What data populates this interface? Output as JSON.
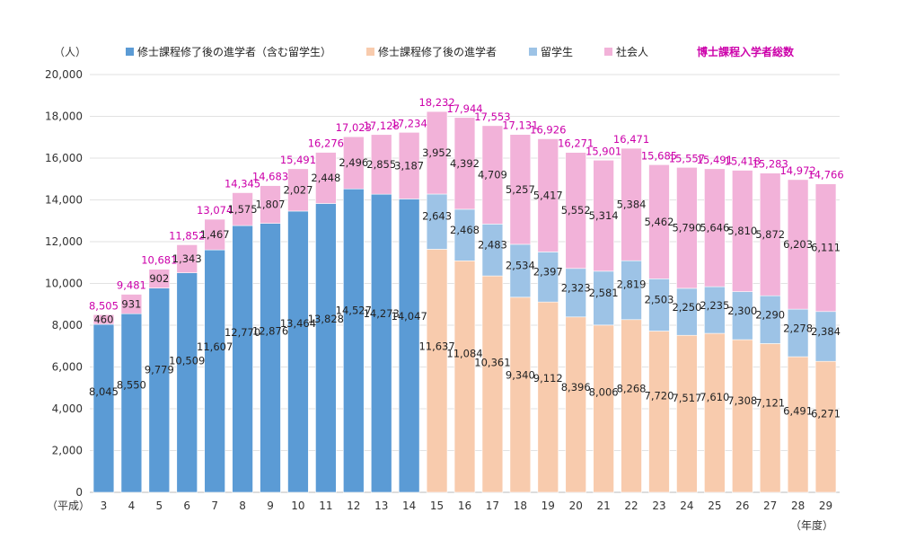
{
  "chart_data": {
    "type": "bar",
    "stacked": true,
    "unit_label": "（人）",
    "x_prefix": "（平成）",
    "x_suffix": "（年度）",
    "categories": [
      "3",
      "4",
      "5",
      "6",
      "7",
      "8",
      "9",
      "10",
      "11",
      "12",
      "13",
      "14",
      "15",
      "16",
      "17",
      "18",
      "19",
      "20",
      "21",
      "22",
      "23",
      "24",
      "25",
      "26",
      "27",
      "28",
      "29"
    ],
    "ylim": [
      0,
      20000
    ],
    "yticks": [
      0,
      2000,
      4000,
      6000,
      8000,
      10000,
      12000,
      14000,
      16000,
      18000,
      20000
    ],
    "ytick_labels": [
      "0",
      "2,000",
      "4,000",
      "6,000",
      "8,000",
      "10,000",
      "12,000",
      "14,000",
      "16,000",
      "18,000",
      "20,000"
    ],
    "grid": true,
    "legend_position": "top",
    "series": [
      {
        "name": "修士課程修了後の進学者（含む留学生）",
        "color": "#5b9bd5",
        "values": [
          8045,
          8550,
          9779,
          10509,
          11607,
          12770,
          12876,
          13464,
          13828,
          14527,
          14273,
          14047,
          null,
          null,
          null,
          null,
          null,
          null,
          null,
          null,
          null,
          null,
          null,
          null,
          null,
          null,
          null
        ]
      },
      {
        "name": "修士課程修了後の進学者",
        "color": "#f8cbad",
        "values": [
          null,
          null,
          null,
          null,
          null,
          null,
          null,
          null,
          null,
          null,
          null,
          null,
          11637,
          11084,
          10361,
          9340,
          9112,
          8396,
          8006,
          8268,
          7720,
          7517,
          7610,
          7308,
          7121,
          6491,
          6271
        ]
      },
      {
        "name": "留学生",
        "color": "#9dc3e6",
        "values": [
          null,
          null,
          null,
          null,
          null,
          null,
          null,
          null,
          null,
          null,
          null,
          null,
          2643,
          2468,
          2483,
          2534,
          2397,
          2323,
          2581,
          2819,
          2503,
          2250,
          2235,
          2300,
          2290,
          2278,
          2384
        ]
      },
      {
        "name": "社会人",
        "color": "#f2b2d9",
        "values": [
          460,
          931,
          902,
          1343,
          1467,
          1575,
          1807,
          2027,
          2448,
          2496,
          2855,
          3187,
          3952,
          4392,
          4709,
          5257,
          5417,
          5552,
          5314,
          5384,
          5462,
          5790,
          5646,
          5810,
          5872,
          6203,
          6111
        ]
      }
    ],
    "total": {
      "name": "博士課程入学者総数",
      "color": "#cc00aa",
      "values": [
        8505,
        9481,
        10681,
        11852,
        13074,
        14345,
        14683,
        15491,
        16276,
        17023,
        17128,
        17234,
        18232,
        17944,
        17553,
        17131,
        16926,
        16271,
        15901,
        16471,
        15685,
        15557,
        15491,
        15418,
        15283,
        14972,
        14766
      ]
    }
  }
}
